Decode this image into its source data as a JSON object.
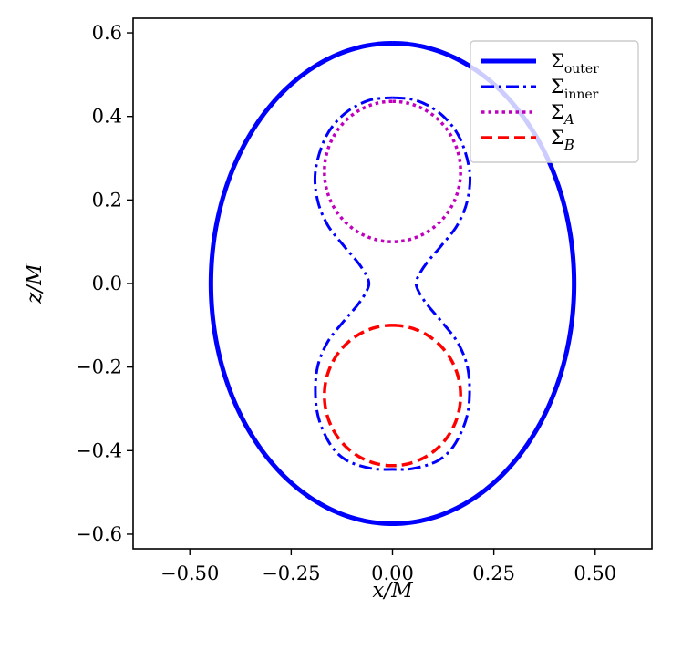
{
  "chart_data": {
    "type": "line",
    "xlabel": "x/M",
    "ylabel": "z/M",
    "xlim": [
      -0.64,
      0.64
    ],
    "ylim": [
      -0.635,
      0.635
    ],
    "xticks": [
      -0.5,
      -0.25,
      0.0,
      0.25,
      0.5
    ],
    "xtick_labels": [
      "−0.50",
      "−0.25",
      "0.00",
      "0.25",
      "0.50"
    ],
    "yticks": [
      -0.6,
      -0.4,
      -0.2,
      0.0,
      0.2,
      0.4,
      0.6
    ],
    "ytick_labels": [
      "−0.6",
      "−0.4",
      "−0.2",
      "0.0",
      "0.2",
      "0.4",
      "0.6"
    ],
    "grid": false,
    "legend_position": "top-right",
    "series": [
      {
        "name": "Σ",
        "subscript": "outer",
        "subscript_style": "roman",
        "color": "#0000ff",
        "style": "solid",
        "shape": "ellipse",
        "center": [
          0,
          0
        ],
        "semi_axis_x": 0.448,
        "semi_axis_z": 0.575
      },
      {
        "name": "Σ",
        "subscript": "inner",
        "subscript_style": "roman",
        "color": "#0000ff",
        "style": "dashdot",
        "shape": "peanut",
        "right_half": [
          [
            0.0,
            0.445
          ],
          [
            0.06,
            0.438
          ],
          [
            0.12,
            0.405
          ],
          [
            0.165,
            0.35
          ],
          [
            0.19,
            0.27
          ],
          [
            0.185,
            0.2
          ],
          [
            0.16,
            0.14
          ],
          [
            0.12,
            0.09
          ],
          [
            0.085,
            0.05
          ],
          [
            0.065,
            0.02
          ],
          [
            0.058,
            0.0
          ],
          [
            0.065,
            -0.02
          ],
          [
            0.085,
            -0.05
          ],
          [
            0.12,
            -0.09
          ],
          [
            0.16,
            -0.14
          ],
          [
            0.185,
            -0.2
          ],
          [
            0.19,
            -0.27
          ],
          [
            0.18,
            -0.33
          ],
          [
            0.15,
            -0.39
          ],
          [
            0.11,
            -0.425
          ],
          [
            0.05,
            -0.443
          ],
          [
            0.0,
            -0.445
          ]
        ]
      },
      {
        "name": "Σ",
        "subscript": "A",
        "subscript_style": "italic",
        "color": "#bf00bf",
        "style": "dotted",
        "shape": "circle",
        "center": [
          0,
          0.268
        ],
        "radius": 0.168
      },
      {
        "name": "Σ",
        "subscript": "B",
        "subscript_style": "italic",
        "color": "#ff0000",
        "style": "dashed",
        "shape": "circle",
        "center": [
          0,
          -0.268
        ],
        "radius": 0.168
      }
    ]
  }
}
